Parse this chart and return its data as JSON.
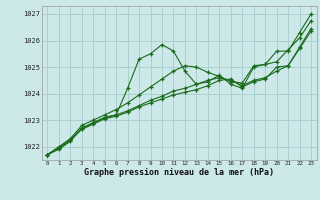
{
  "title": "Graphe pression niveau de la mer (hPa)",
  "bg_color": "#cce8e8",
  "grid_color": "#aad0d0",
  "line_color": "#1a6b1a",
  "xlim": [
    -0.5,
    23.5
  ],
  "ylim": [
    1021.5,
    1027.3
  ],
  "yticks": [
    1022,
    1023,
    1024,
    1025,
    1026,
    1027
  ],
  "xticks": [
    0,
    1,
    2,
    3,
    4,
    5,
    6,
    7,
    8,
    9,
    10,
    11,
    12,
    13,
    14,
    15,
    16,
    17,
    18,
    19,
    20,
    21,
    22,
    23
  ],
  "series": [
    [
      1021.7,
      1021.9,
      1022.2,
      1022.7,
      1022.9,
      1023.1,
      1023.2,
      1024.2,
      1025.3,
      1025.5,
      1025.85,
      1025.6,
      1024.85,
      1024.35,
      1024.45,
      1024.7,
      1024.35,
      1024.2,
      1025.0,
      1025.1,
      1025.6,
      1025.6,
      1026.3,
      1027.0
    ],
    [
      1021.7,
      1021.95,
      1022.25,
      1022.65,
      1022.85,
      1023.05,
      1023.15,
      1023.3,
      1023.5,
      1023.65,
      1023.8,
      1023.95,
      1024.05,
      1024.15,
      1024.3,
      1024.5,
      1024.55,
      1024.25,
      1024.45,
      1024.55,
      1025.0,
      1025.05,
      1025.7,
      1026.35
    ],
    [
      1021.7,
      1021.95,
      1022.25,
      1022.7,
      1022.9,
      1023.1,
      1023.2,
      1023.35,
      1023.55,
      1023.75,
      1023.9,
      1024.1,
      1024.2,
      1024.35,
      1024.5,
      1024.6,
      1024.5,
      1024.3,
      1024.5,
      1024.6,
      1024.85,
      1025.05,
      1025.75,
      1026.45
    ],
    [
      1021.7,
      1022.0,
      1022.3,
      1022.8,
      1023.0,
      1023.2,
      1023.4,
      1023.65,
      1023.95,
      1024.25,
      1024.55,
      1024.85,
      1025.05,
      1025.0,
      1024.8,
      1024.65,
      1024.45,
      1024.4,
      1025.05,
      1025.1,
      1025.2,
      1025.65,
      1026.1,
      1026.75
    ]
  ]
}
